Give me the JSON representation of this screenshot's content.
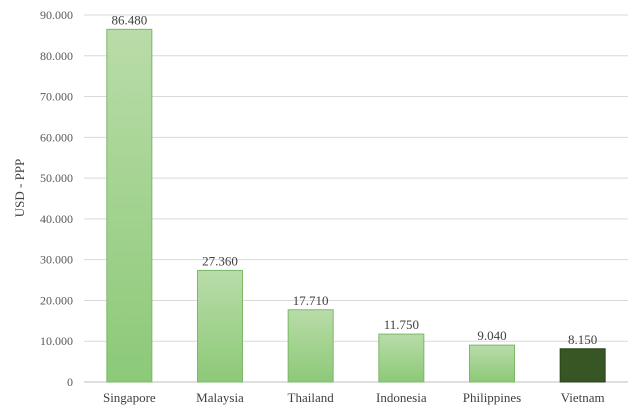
{
  "chart_data": {
    "type": "bar",
    "title": "",
    "xlabel": "",
    "ylabel": "USD - PPP",
    "categories": [
      "Singapore",
      "Malaysia",
      "Thailand",
      "Indonesia",
      "Philippines",
      "Vietnam"
    ],
    "values": [
      86480,
      27360,
      17710,
      11750,
      9040,
      8150
    ],
    "value_labels": [
      "86.480",
      "27.360",
      "17.710",
      "11.750",
      "9.040",
      "8.150"
    ],
    "ylim": [
      0,
      90000
    ],
    "yticks": [
      0,
      10000,
      20000,
      30000,
      40000,
      50000,
      60000,
      70000,
      80000,
      90000
    ],
    "ytick_labels": [
      "0",
      "10.000",
      "20.000",
      "30.000",
      "40.000",
      "50.000",
      "60.000",
      "70.000",
      "80.000",
      "90.000"
    ],
    "grid": true,
    "legend": "none",
    "colors": {
      "bar_gradient_top": "#b9dca8",
      "bar_gradient_bottom": "#8cc978",
      "bar_border": "#7cb868",
      "highlight_bar": "#375623",
      "highlight_border": "#2a431a"
    },
    "highlight_category": "Vietnam"
  }
}
